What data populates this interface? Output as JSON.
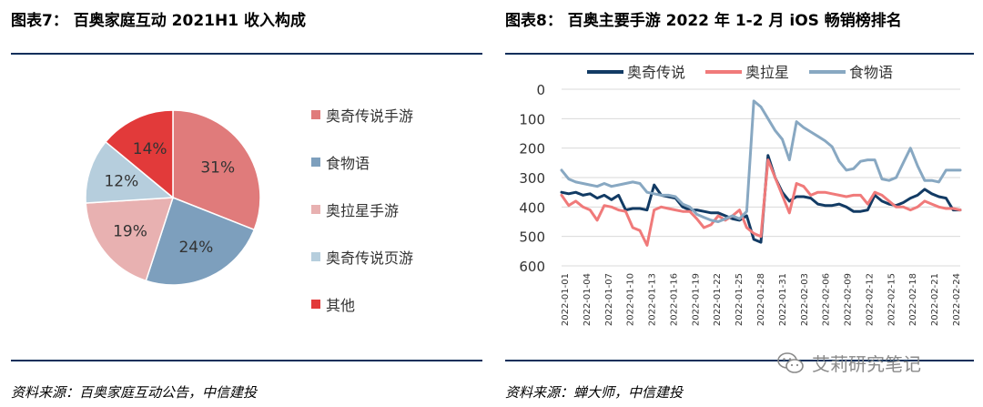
{
  "left": {
    "title": "图表7： 百奥家庭互动 2021H1 收入构成",
    "source": "资料来源：百奥家庭互动公告，中信建投"
  },
  "right": {
    "title": "图表8： 百奥主要手游 2022 年 1-2 月 iOS 畅销榜排名",
    "source": "资料来源：蝉大师，中信建投"
  },
  "watermark": {
    "text": "艾莉研究笔记",
    "icon": "wechat-icon"
  },
  "colors": {
    "rule": "#0c2f5a"
  },
  "chart_data": [
    {
      "type": "pie",
      "title": "百奥家庭互动 2021H1 收入构成",
      "slices": [
        {
          "label": "奥奇传说手游",
          "value": 31,
          "display": "31%",
          "color": "#e07b7b"
        },
        {
          "label": "食物语",
          "value": 24,
          "display": "24%",
          "color": "#7d9fbd"
        },
        {
          "label": "奥拉星手游",
          "value": 19,
          "display": "19%",
          "color": "#e8b1b1"
        },
        {
          "label": "奥奇传说页游",
          "value": 12,
          "display": "12%",
          "color": "#b6cedd"
        },
        {
          "label": "其他",
          "value": 14,
          "display": "14%",
          "color": "#e23a3a"
        }
      ],
      "legend_position": "right"
    },
    {
      "type": "line",
      "title": "百奥主要手游 2022 年 1-2 月 iOS 畅销榜排名",
      "ylim": [
        0,
        600
      ],
      "y_inverted": true,
      "y_ticks": [
        "0",
        "100",
        "200",
        "300",
        "400",
        "500",
        "600"
      ],
      "x_ticks": [
        "2022-01-01",
        "2022-01-04",
        "2022-01-07",
        "2022-01-10",
        "2022-01-13",
        "2022-01-16",
        "2022-01-19",
        "2022-01-22",
        "2022-01-25",
        "2022-01-28",
        "2022-01-31",
        "2022-02-03",
        "2022-02-06",
        "2022-02-09",
        "2022-02-12",
        "2022-02-15",
        "2022-02-18",
        "2022-02-21",
        "2022-02-24"
      ],
      "grid": true,
      "legend_position": "top",
      "series": [
        {
          "name": "奥奇传说",
          "color": "#123b64",
          "values": [
            350,
            355,
            350,
            360,
            355,
            370,
            360,
            375,
            360,
            410,
            405,
            405,
            410,
            325,
            360,
            365,
            370,
            400,
            410,
            410,
            415,
            420,
            420,
            430,
            440,
            445,
            430,
            510,
            520,
            225,
            300,
            350,
            380,
            365,
            365,
            370,
            390,
            395,
            395,
            390,
            400,
            415,
            415,
            410,
            360,
            380,
            390,
            395,
            385,
            370,
            360,
            340,
            355,
            365,
            370,
            410,
            410
          ]
        },
        {
          "name": "奥拉星",
          "color": "#f07a7a",
          "values": [
            360,
            395,
            380,
            400,
            410,
            445,
            395,
            400,
            410,
            415,
            470,
            480,
            530,
            410,
            400,
            405,
            410,
            415,
            415,
            440,
            470,
            460,
            430,
            445,
            430,
            410,
            470,
            490,
            500,
            240,
            300,
            360,
            420,
            320,
            330,
            360,
            350,
            350,
            355,
            360,
            365,
            360,
            360,
            390,
            350,
            360,
            380,
            400,
            400,
            410,
            400,
            380,
            390,
            400,
            405,
            405,
            410
          ]
        },
        {
          "name": "食物语",
          "color": "#88a8c2",
          "values": [
            275,
            305,
            315,
            320,
            325,
            330,
            320,
            330,
            325,
            320,
            315,
            320,
            350,
            355,
            360,
            360,
            365,
            390,
            400,
            425,
            435,
            445,
            450,
            440,
            430,
            440,
            415,
            40,
            60,
            100,
            140,
            170,
            240,
            110,
            130,
            145,
            160,
            175,
            195,
            245,
            275,
            270,
            245,
            240,
            240,
            305,
            310,
            300,
            250,
            200,
            260,
            310,
            310,
            315,
            275,
            275,
            275
          ]
        }
      ]
    }
  ]
}
